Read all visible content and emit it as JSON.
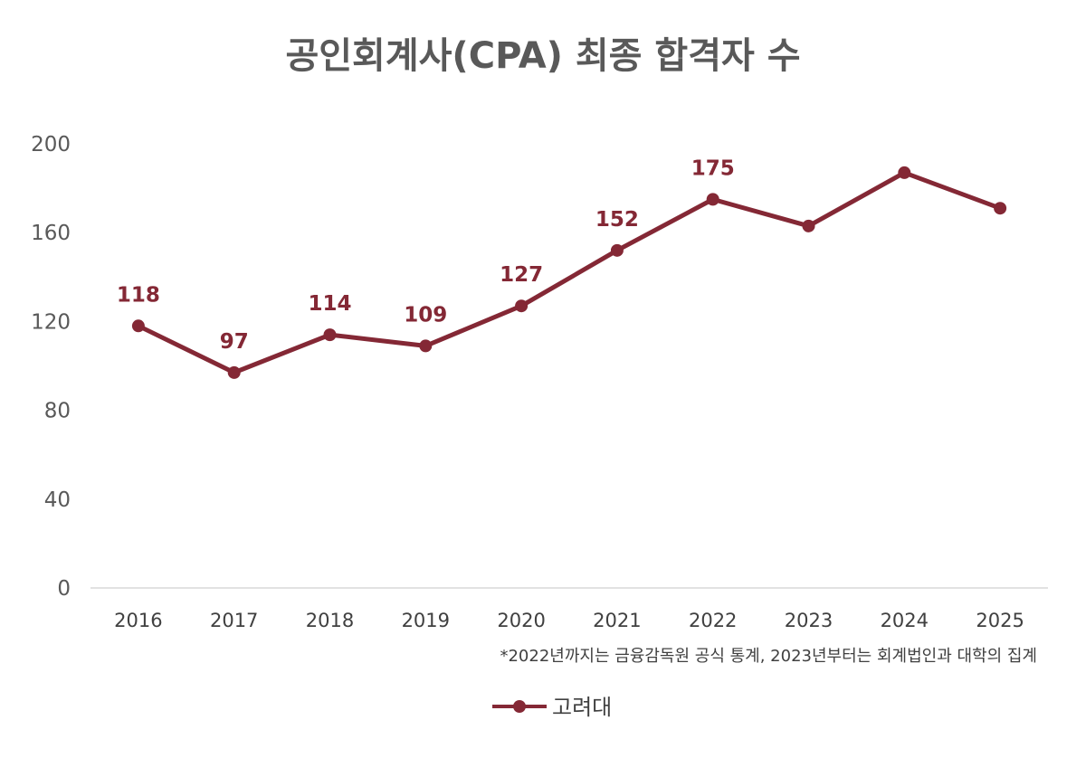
{
  "colors": {
    "series": "#842835",
    "axis": "#d9d9d9",
    "text": "#595959"
  },
  "chart_data": {
    "type": "line",
    "title": "공인회계사(CPA) 최종 합격자 수",
    "xlabel": "",
    "ylabel": "",
    "categories": [
      "2016",
      "2017",
      "2018",
      "2019",
      "2020",
      "2021",
      "2022",
      "2023",
      "2024",
      "2025"
    ],
    "y_ticks": [
      0,
      40,
      80,
      120,
      160,
      200
    ],
    "ylim": [
      0,
      200
    ],
    "grid": false,
    "series": [
      {
        "name": "고려대",
        "values": [
          118,
          97,
          114,
          109,
          127,
          152,
          175,
          163,
          187,
          171
        ],
        "data_labels": [
          "118",
          "97",
          "114",
          "109",
          "127",
          "152",
          "175",
          null,
          null,
          null
        ]
      }
    ],
    "legend": "bottom-center",
    "footnote": "*2022년까지는 금융감독원 공식 통계, 2023년부터는 회계법인과 대학의 집계"
  }
}
